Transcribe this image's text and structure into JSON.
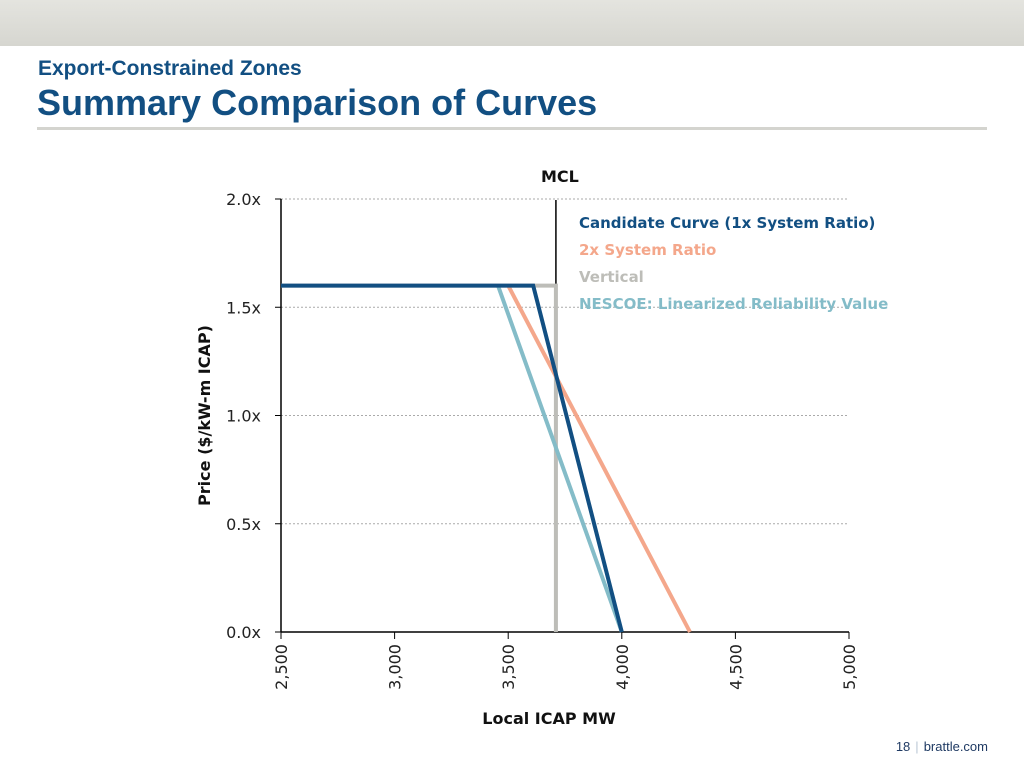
{
  "header": {
    "subtitle": "Export-Constrained Zones",
    "title": "Summary Comparison of Curves"
  },
  "footer": {
    "page": "18",
    "site": "brattle.com"
  },
  "chart_data": {
    "type": "line",
    "title": "",
    "xlabel": "Local ICAP MW",
    "ylabel": "Price ($/kW-m ICAP)",
    "xlim": [
      2500,
      5000
    ],
    "ylim": [
      0,
      2.0
    ],
    "xticks": [
      "2,500",
      "3,000",
      "3,500",
      "4,000",
      "4,500",
      "5,000"
    ],
    "xtick_values": [
      2500,
      3000,
      3500,
      4000,
      4500,
      5000
    ],
    "yticks": [
      "0.0x",
      "0.5x",
      "1.0x",
      "1.5x",
      "2.0x"
    ],
    "ytick_values": [
      0,
      0.5,
      1.0,
      1.5,
      2.0
    ],
    "grid": "horizontal dashed",
    "legend_position": "top-right",
    "annotation": {
      "label": "MCL",
      "x": 3710
    },
    "series": [
      {
        "name": "Vertical",
        "color": "#bdbdb8",
        "points": [
          [
            2500,
            1.6
          ],
          [
            3710,
            1.6
          ],
          [
            3710,
            0
          ]
        ]
      },
      {
        "name": "NESCOE: Linearized Reliability Value",
        "color": "#84bcc8",
        "points": [
          [
            3455,
            1.6
          ],
          [
            4000,
            0
          ]
        ]
      },
      {
        "name": "2x System Ratio",
        "color": "#f4a78b",
        "points": [
          [
            3500,
            1.6
          ],
          [
            4300,
            0
          ]
        ]
      },
      {
        "name": "Candidate Curve (1x System Ratio)",
        "color": "#124f82",
        "points": [
          [
            2500,
            1.6
          ],
          [
            3610,
            1.6
          ],
          [
            4000,
            0
          ]
        ]
      }
    ],
    "legend_order": [
      3,
      2,
      0,
      1
    ]
  }
}
